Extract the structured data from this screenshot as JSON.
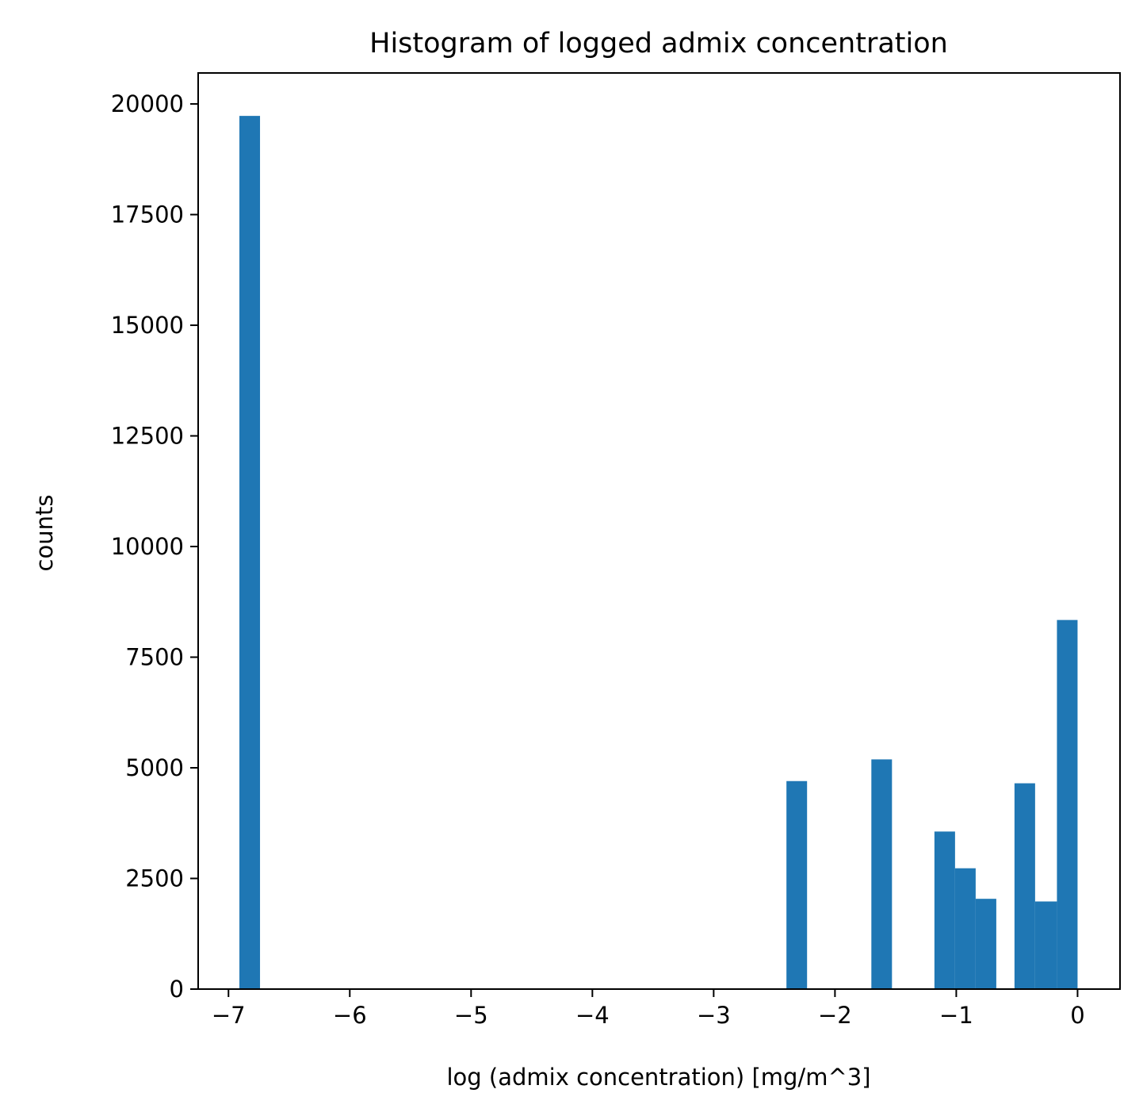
{
  "chart_data": {
    "type": "bar",
    "title": "Histogram of logged admix concentration",
    "xlabel": "log (admix concentration) [mg/m^3]",
    "ylabel": "counts",
    "xlim": [
      -7.25,
      0.35
    ],
    "ylim": [
      0,
      20700
    ],
    "xticks": [
      -7,
      -6,
      -5,
      -4,
      -3,
      -2,
      -1,
      0
    ],
    "xtick_labels": [
      "−7",
      "−6",
      "−5",
      "−4",
      "−3",
      "−2",
      "−1",
      "0"
    ],
    "yticks": [
      0,
      2500,
      5000,
      7500,
      10000,
      12500,
      15000,
      17500,
      20000
    ],
    "ytick_labels": [
      "0",
      "2500",
      "5000",
      "7500",
      "10000",
      "12500",
      "15000",
      "17500",
      "20000"
    ],
    "grid": false,
    "bar_color": "#1f77b4",
    "bins": [
      {
        "x0": -6.91,
        "x1": -6.74,
        "count": 19730
      },
      {
        "x0": -2.4,
        "x1": -2.23,
        "count": 4700
      },
      {
        "x0": -1.7,
        "x1": -1.53,
        "count": 5190
      },
      {
        "x0": -1.18,
        "x1": -1.01,
        "count": 3560
      },
      {
        "x0": -1.01,
        "x1": -0.84,
        "count": 2730
      },
      {
        "x0": -0.84,
        "x1": -0.67,
        "count": 2040
      },
      {
        "x0": -0.52,
        "x1": -0.35,
        "count": 4650
      },
      {
        "x0": -0.35,
        "x1": -0.17,
        "count": 1980
      },
      {
        "x0": -0.17,
        "x1": 0.0,
        "count": 8340
      }
    ]
  }
}
